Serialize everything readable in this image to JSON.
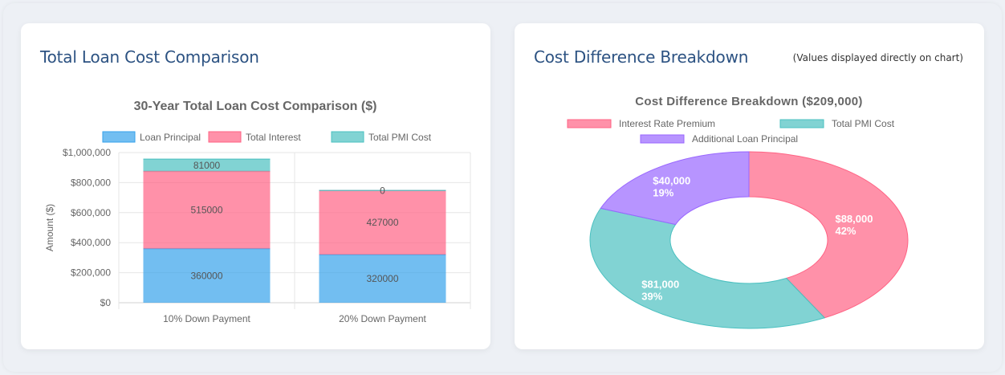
{
  "panels": {
    "left": {
      "title": "Total Loan Cost Comparison"
    },
    "right": {
      "title": "Cost Difference Breakdown",
      "note": "(Values displayed directly on chart)"
    }
  },
  "chart_data": [
    {
      "type": "bar",
      "stacked": true,
      "title": "30-Year Total Loan Cost Comparison ($)",
      "xlabel": "",
      "ylabel": "Amount ($)",
      "ylim": [
        0,
        1000000
      ],
      "yticks": [
        "$0",
        "$200,000",
        "$400,000",
        "$600,000",
        "$800,000",
        "$1,000,000"
      ],
      "ytick_values": [
        0,
        200000,
        400000,
        600000,
        800000,
        1000000
      ],
      "categories": [
        "10% Down Payment",
        "20% Down Payment"
      ],
      "legend_position": "top",
      "grid": true,
      "series": [
        {
          "name": "Loan Principal",
          "values": [
            360000,
            320000
          ],
          "color": "#36a2eb",
          "fill": "rgba(54,162,235,0.7)"
        },
        {
          "name": "Total Interest",
          "values": [
            515000,
            427000
          ],
          "color": "#ff6384",
          "fill": "rgba(255,99,132,0.7)"
        },
        {
          "name": "Total PMI Cost",
          "values": [
            81000,
            0
          ],
          "color": "#4bc0c0",
          "fill": "rgba(75,192,192,0.7)"
        }
      ]
    },
    {
      "type": "pie",
      "donut": true,
      "title": "Cost Difference Breakdown ($209,000)",
      "legend_position": "top",
      "slices": [
        {
          "label": "Interest Rate Premium",
          "value": 88000,
          "display": "$88,000",
          "percent": "42%",
          "color": "#ff6384",
          "fill": "rgba(255,99,132,0.7)"
        },
        {
          "label": "Total PMI Cost",
          "value": 81000,
          "display": "$81,000",
          "percent": "39%",
          "color": "#4bc0c0",
          "fill": "rgba(75,192,192,0.7)"
        },
        {
          "label": "Additional Loan Principal",
          "value": 40000,
          "display": "$40,000",
          "percent": "19%",
          "color": "#9966ff",
          "fill": "rgba(153,102,255,0.7)"
        }
      ]
    }
  ]
}
